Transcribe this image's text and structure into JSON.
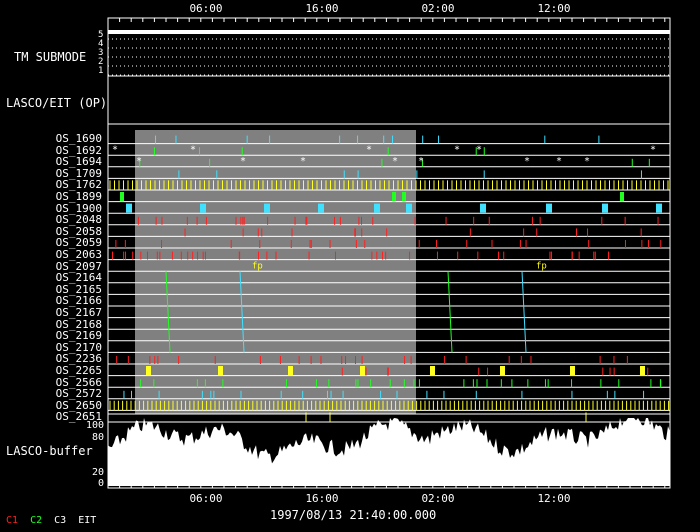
{
  "time_axis": {
    "top_ticks": [
      "06:00",
      "16:00",
      "02:00",
      "12:00"
    ],
    "bottom_ticks": [
      "06:00",
      "16:00",
      "02:00",
      "12:00"
    ],
    "timestamp": "1997/08/13 21:40:00.000"
  },
  "panels": {
    "tm_submode": {
      "label": "TM SUBMODE",
      "levels": [
        "5",
        "4",
        "3",
        "2",
        "1"
      ]
    },
    "lasco_eit": {
      "label": "LASCO/EIT (OP)"
    },
    "buffer": {
      "label": "LASCO-buffer",
      "levels": [
        "100",
        "80",
        "20",
        "0"
      ]
    }
  },
  "os_rows": [
    "OS_1690",
    "OS_1692",
    "OS_1694",
    "OS_1709",
    "OS_1762",
    "OS_1899",
    "OS_1900",
    "OS_2048",
    "OS_2058",
    "OS_2059",
    "OS_2063",
    "OS_2097",
    "OS_2164",
    "OS_2165",
    "OS_2166",
    "OS_2167",
    "OS_2168",
    "OS_2169",
    "OS_2170",
    "OS_2236",
    "OS_2265",
    "OS_2566",
    "OS_2572",
    "OS_2650",
    "OS_2651"
  ],
  "legend": [
    {
      "text": "C1",
      "color": "#ff2020"
    },
    {
      "text": "C2",
      "color": "#20ff20"
    },
    {
      "text": "C3",
      "color": "#ffffff"
    },
    {
      "text": "EIT",
      "color": "#ffffff"
    }
  ],
  "colors": {
    "c1": "#ff2020",
    "c2": "#20ff20",
    "c3": "#40e0ff",
    "yellow": "#ffff20",
    "shade": "#808080",
    "grid": "#ffffff"
  }
}
